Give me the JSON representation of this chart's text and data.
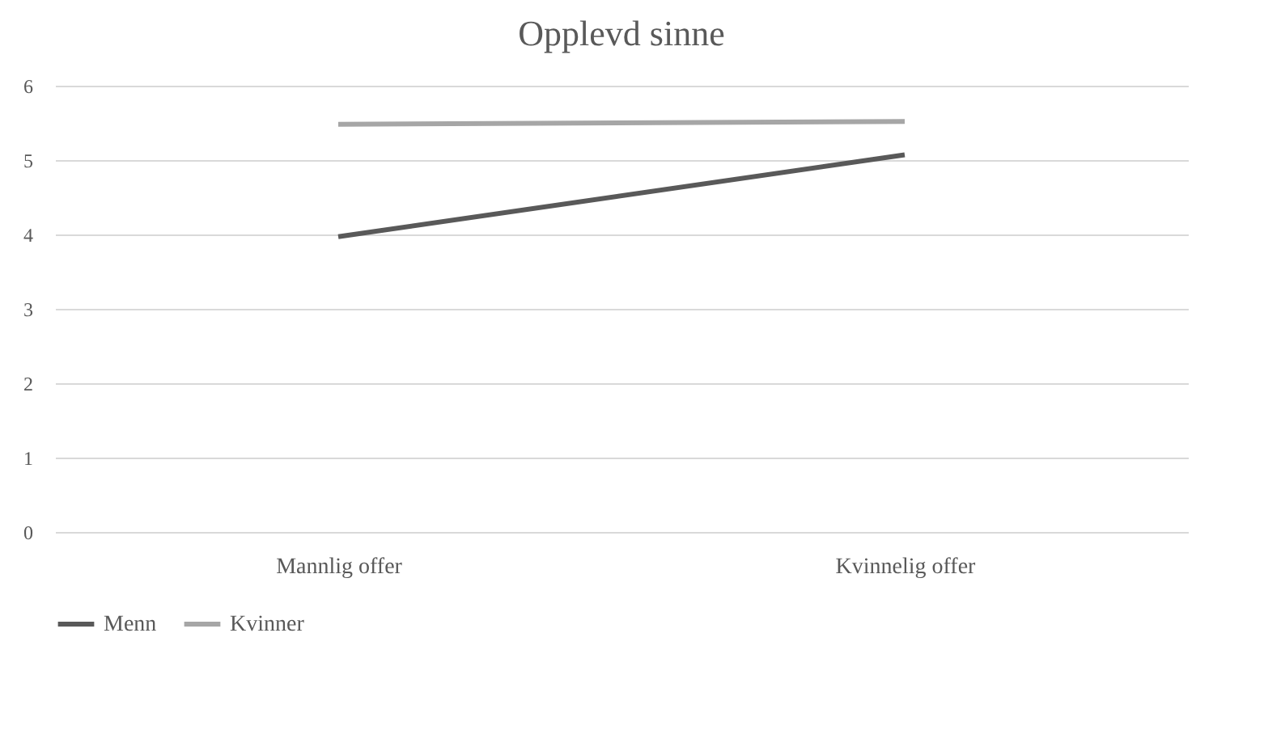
{
  "chart_data": {
    "type": "line",
    "title": "Opplevd sinne",
    "categories": [
      "Mannlig offer",
      "Kvinnelig offer"
    ],
    "series": [
      {
        "name": "Menn",
        "color": "#595959",
        "values": [
          3.97,
          5.07
        ]
      },
      {
        "name": "Kvinner",
        "color": "#a6a6a6",
        "values": [
          5.48,
          5.52
        ]
      }
    ],
    "ylim": [
      0,
      6
    ],
    "yticks": [
      0,
      1,
      2,
      3,
      4,
      5,
      6
    ],
    "grid": "y",
    "legend": "bottom",
    "marker": "none",
    "line_style": "solid"
  }
}
